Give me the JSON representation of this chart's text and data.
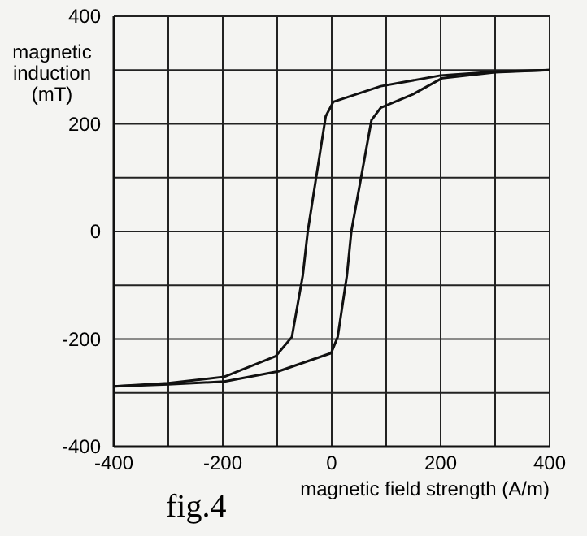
{
  "chart_data": {
    "type": "line",
    "xlabel": "magnetic field strength (A/m)",
    "ylabel": "magnetic induction (mT)",
    "annotations": [
      "fig.4"
    ],
    "xlim": [
      -400,
      400
    ],
    "ylim": [
      -400,
      400
    ],
    "xticks": [
      -400,
      {
        "value": -300,
        "label": null
      },
      -200,
      {
        "value": -100,
        "label": null
      },
      0,
      {
        "value": 100,
        "label": null
      },
      200,
      {
        "value": 300,
        "label": null
      },
      400
    ],
    "yticks": [
      -400,
      {
        "value": -300,
        "label": null
      },
      -200,
      {
        "value": -100,
        "label": null
      },
      0,
      {
        "value": 100,
        "label": null
      },
      200,
      {
        "value": 300,
        "label": null
      },
      400
    ],
    "grid": true,
    "marker": "none",
    "line_style": "solid",
    "series": [
      {
        "color": "#111111",
        "x": [
          400,
          300,
          200,
          90,
          3,
          -11,
          -44,
          -53,
          -73,
          -103,
          -197,
          -300,
          -400
        ],
        "values": [
          300,
          297,
          290,
          270,
          241,
          214,
          0,
          -81,
          -196,
          -232,
          -270,
          -282,
          -288
        ]
      },
      {
        "color": "#111111",
        "x": [
          -400,
          -300,
          -197,
          -98,
          -1,
          11,
          28,
          36,
          73,
          90,
          149,
          203,
          300,
          400
        ],
        "values": [
          -288,
          -284,
          -279,
          -260,
          -226,
          -196,
          -81,
          0,
          207,
          230,
          255,
          285,
          296,
          300
        ]
      }
    ]
  }
}
